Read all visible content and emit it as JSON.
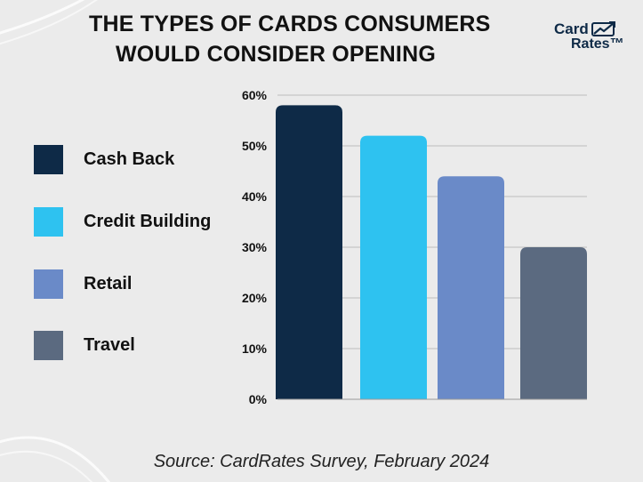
{
  "title_lines": [
    "THE TYPES OF CARDS CONSUMERS",
    "WOULD CONSIDER OPENING"
  ],
  "logo": {
    "line1": "Card",
    "line2": "Rates™",
    "icon": "chart-trend-icon"
  },
  "source": "Source: CardRates Survey, February 2024",
  "colors": {
    "background": "#ebebeb",
    "text": "#111111",
    "grid": "#bdbdbd",
    "brand": "#0e2a47"
  },
  "chart_data": {
    "type": "bar",
    "categories": [
      "Cash Back",
      "Credit Building",
      "Retail",
      "Travel"
    ],
    "values": [
      58,
      52,
      44,
      30
    ],
    "colors": [
      "#0e2a47",
      "#2ec2f0",
      "#6a8ac8",
      "#5b6a80"
    ],
    "yticks": [
      "0%",
      "10%",
      "20%",
      "30%",
      "40%",
      "50%",
      "60%"
    ],
    "ylim": [
      0,
      60
    ],
    "grid": true,
    "legend_position": "left",
    "xtick_labels_shown": false
  }
}
